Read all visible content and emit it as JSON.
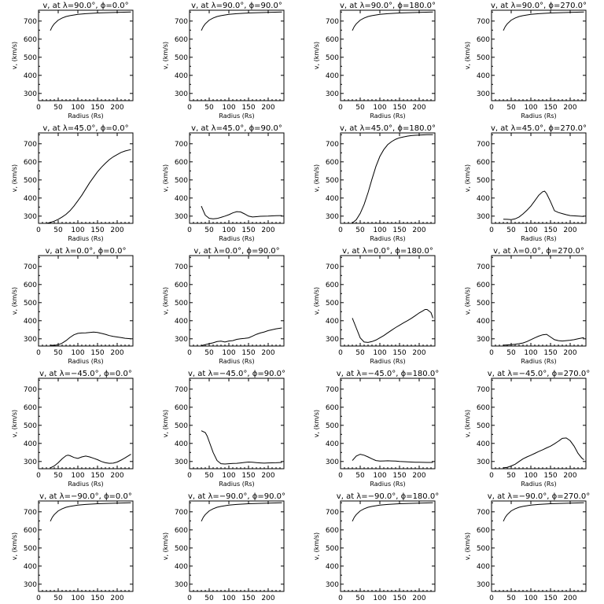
{
  "chart_data": [
    {
      "type": "line",
      "title": "v, at λ=90.0°, ϕ=0.0°",
      "xlabel": "Radius (Rs)",
      "ylabel": "v, (km/s)",
      "xlim": [
        0,
        240
      ],
      "ylim": [
        260,
        760
      ],
      "x": [
        30,
        35,
        40,
        50,
        60,
        70,
        80,
        100,
        120,
        150,
        200,
        235
      ],
      "values": [
        648,
        670,
        685,
        705,
        717,
        725,
        730,
        737,
        741,
        745,
        748,
        750
      ]
    },
    {
      "type": "line",
      "title": "v, at λ=90.0°, ϕ=90.0°",
      "xlabel": "Radius (Rs)",
      "ylabel": "v, (km/s)",
      "xlim": [
        0,
        240
      ],
      "ylim": [
        260,
        760
      ],
      "x": [
        30,
        35,
        40,
        50,
        60,
        70,
        80,
        100,
        120,
        150,
        200,
        235
      ],
      "values": [
        648,
        670,
        685,
        705,
        717,
        725,
        730,
        737,
        741,
        745,
        748,
        750
      ]
    },
    {
      "type": "line",
      "title": "v, at λ=90.0°, ϕ=180.0°",
      "xlabel": "Radius (Rs)",
      "ylabel": "v, (km/s)",
      "xlim": [
        0,
        240
      ],
      "ylim": [
        260,
        760
      ],
      "x": [
        30,
        35,
        40,
        50,
        60,
        70,
        80,
        100,
        120,
        150,
        200,
        235
      ],
      "values": [
        648,
        670,
        685,
        705,
        717,
        725,
        730,
        737,
        741,
        745,
        748,
        750
      ]
    },
    {
      "type": "line",
      "title": "v, at λ=90.0°, ϕ=270.0°",
      "xlabel": "Radius (Rs)",
      "ylabel": "v, (km/s)",
      "xlim": [
        0,
        240
      ],
      "ylim": [
        260,
        760
      ],
      "x": [
        30,
        35,
        40,
        50,
        60,
        70,
        80,
        100,
        120,
        150,
        200,
        235
      ],
      "values": [
        648,
        670,
        685,
        705,
        717,
        725,
        730,
        737,
        741,
        745,
        748,
        750
      ]
    },
    {
      "type": "line",
      "title": "v, at λ=45.0°, ϕ=0.0°",
      "xlabel": "Radius (Rs)",
      "ylabel": "v, (km/s)",
      "xlim": [
        0,
        240
      ],
      "ylim": [
        260,
        760
      ],
      "x": [
        20,
        30,
        40,
        50,
        60,
        70,
        80,
        90,
        100,
        110,
        120,
        130,
        140,
        150,
        160,
        170,
        180,
        190,
        200,
        210,
        220,
        235
      ],
      "values": [
        260,
        265,
        272,
        282,
        295,
        310,
        330,
        355,
        385,
        415,
        450,
        485,
        515,
        545,
        570,
        592,
        612,
        628,
        640,
        652,
        660,
        668
      ]
    },
    {
      "type": "line",
      "title": "v, at λ=45.0°, ϕ=90.0°",
      "xlabel": "Radius (Rs)",
      "ylabel": "v, (km/s)",
      "xlim": [
        0,
        240
      ],
      "ylim": [
        260,
        760
      ],
      "x": [
        30,
        35,
        40,
        50,
        60,
        70,
        80,
        90,
        100,
        110,
        120,
        130,
        140,
        150,
        160,
        170,
        180,
        200,
        220,
        235
      ],
      "values": [
        355,
        330,
        305,
        288,
        285,
        287,
        293,
        300,
        308,
        318,
        325,
        323,
        312,
        300,
        295,
        297,
        299,
        300,
        302,
        303
      ]
    },
    {
      "type": "line",
      "title": "v, at λ=45.0°, ϕ=180.0°",
      "xlabel": "Radius (Rs)",
      "ylabel": "v, (km/s)",
      "xlim": [
        0,
        240
      ],
      "ylim": [
        260,
        760
      ],
      "x": [
        30,
        40,
        50,
        60,
        70,
        80,
        90,
        100,
        110,
        120,
        130,
        140,
        150,
        160,
        170,
        180,
        190,
        200,
        210,
        220,
        235
      ],
      "values": [
        262,
        280,
        315,
        365,
        430,
        505,
        575,
        630,
        668,
        695,
        712,
        725,
        733,
        738,
        742,
        745,
        747,
        748,
        749,
        750,
        750
      ]
    },
    {
      "type": "line",
      "title": "v, at λ=45.0°, ϕ=270.0°",
      "xlabel": "Radius (Rs)",
      "ylabel": "v, (km/s)",
      "xlim": [
        0,
        240
      ],
      "ylim": [
        260,
        760
      ],
      "x": [
        30,
        40,
        50,
        60,
        70,
        80,
        90,
        100,
        110,
        120,
        130,
        135,
        140,
        150,
        160,
        170,
        180,
        190,
        200,
        220,
        235
      ],
      "values": [
        283,
        282,
        281,
        285,
        295,
        312,
        332,
        355,
        385,
        415,
        435,
        438,
        425,
        380,
        330,
        320,
        314,
        308,
        303,
        300,
        298
      ]
    },
    {
      "type": "line",
      "title": "v, at λ=0.0°, ϕ=0.0°",
      "xlabel": "Radius (Rs)",
      "ylabel": "v, (km/s)",
      "xlim": [
        0,
        240
      ],
      "ylim": [
        260,
        760
      ],
      "x": [
        30,
        40,
        50,
        60,
        70,
        80,
        90,
        100,
        110,
        120,
        130,
        140,
        150,
        160,
        170,
        180,
        190,
        200,
        210,
        220,
        235
      ],
      "values": [
        265,
        264,
        267,
        276,
        290,
        308,
        322,
        330,
        332,
        333,
        335,
        337,
        335,
        330,
        325,
        318,
        313,
        310,
        307,
        303,
        300
      ]
    },
    {
      "type": "line",
      "title": "v, at λ=0.0°, ϕ=90.0°",
      "xlabel": "Radius (Rs)",
      "ylabel": "v, (km/s)",
      "xlim": [
        0,
        240
      ],
      "ylim": [
        260,
        760
      ],
      "x": [
        30,
        40,
        50,
        60,
        70,
        80,
        90,
        100,
        110,
        120,
        130,
        140,
        150,
        160,
        170,
        180,
        190,
        200,
        210,
        220,
        235
      ],
      "values": [
        262,
        268,
        273,
        278,
        285,
        287,
        282,
        288,
        290,
        297,
        300,
        302,
        305,
        315,
        325,
        332,
        338,
        345,
        350,
        355,
        360
      ]
    },
    {
      "type": "line",
      "title": "v, at λ=0.0°, ϕ=180.0°",
      "xlabel": "Radius (Rs)",
      "ylabel": "v, (km/s)",
      "xlim": [
        0,
        240
      ],
      "ylim": [
        260,
        760
      ],
      "x": [
        30,
        40,
        50,
        60,
        70,
        80,
        90,
        100,
        110,
        120,
        130,
        140,
        150,
        160,
        170,
        180,
        190,
        200,
        210,
        215,
        220,
        230,
        235
      ],
      "values": [
        415,
        360,
        305,
        282,
        280,
        285,
        293,
        305,
        318,
        333,
        348,
        362,
        375,
        388,
        400,
        413,
        428,
        443,
        455,
        462,
        462,
        445,
        415
      ]
    },
    {
      "type": "line",
      "title": "v, at λ=0.0°, ϕ=270.0°",
      "xlabel": "Radius (Rs)",
      "ylabel": "v, (km/s)",
      "xlim": [
        0,
        240
      ],
      "ylim": [
        260,
        760
      ],
      "x": [
        30,
        40,
        50,
        60,
        70,
        80,
        90,
        100,
        110,
        120,
        130,
        140,
        150,
        160,
        170,
        180,
        190,
        200,
        210,
        220,
        235
      ],
      "values": [
        265,
        266,
        268,
        270,
        273,
        277,
        285,
        295,
        305,
        315,
        322,
        325,
        310,
        295,
        290,
        288,
        290,
        292,
        295,
        300,
        307
      ]
    },
    {
      "type": "line",
      "title": "v, at λ=−45.0°, ϕ=0.0°",
      "xlabel": "Radius (Rs)",
      "ylabel": "v, (km/s)",
      "xlim": [
        0,
        240
      ],
      "ylim": [
        260,
        760
      ],
      "x": [
        30,
        40,
        50,
        60,
        70,
        75,
        80,
        90,
        100,
        110,
        120,
        130,
        140,
        150,
        160,
        170,
        180,
        190,
        200,
        210,
        220,
        235
      ],
      "values": [
        265,
        275,
        293,
        315,
        332,
        335,
        332,
        322,
        317,
        325,
        330,
        325,
        318,
        310,
        300,
        293,
        290,
        291,
        297,
        308,
        320,
        340
      ]
    },
    {
      "type": "line",
      "title": "v, at λ=−45.0°, ϕ=90.0°",
      "xlabel": "Radius (Rs)",
      "ylabel": "v, (km/s)",
      "xlim": [
        0,
        240
      ],
      "ylim": [
        260,
        760
      ],
      "x": [
        30,
        40,
        45,
        50,
        60,
        70,
        80,
        90,
        100,
        110,
        120,
        130,
        140,
        150,
        160,
        170,
        180,
        190,
        200,
        220,
        235
      ],
      "values": [
        470,
        460,
        440,
        410,
        350,
        305,
        288,
        286,
        288,
        289,
        290,
        292,
        295,
        297,
        296,
        294,
        292,
        291,
        292,
        293,
        295
      ]
    },
    {
      "type": "line",
      "title": "v, at λ=−45.0°, ϕ=180.0°",
      "xlabel": "Radius (Rs)",
      "ylabel": "v, (km/s)",
      "xlim": [
        0,
        240
      ],
      "ylim": [
        260,
        760
      ],
      "x": [
        30,
        40,
        50,
        60,
        70,
        80,
        90,
        100,
        110,
        120,
        130,
        140,
        150,
        160,
        170,
        180,
        190,
        200,
        220,
        235
      ],
      "values": [
        305,
        330,
        340,
        335,
        325,
        315,
        305,
        302,
        303,
        304,
        303,
        302,
        300,
        299,
        298,
        297,
        296,
        296,
        295,
        295
      ]
    },
    {
      "type": "line",
      "title": "v, at λ=−45.0°, ϕ=270.0°",
      "xlabel": "Radius (Rs)",
      "ylabel": "v, (km/s)",
      "xlim": [
        0,
        240
      ],
      "ylim": [
        260,
        760
      ],
      "x": [
        30,
        40,
        50,
        60,
        70,
        80,
        90,
        100,
        110,
        120,
        130,
        140,
        150,
        160,
        170,
        175,
        180,
        190,
        200,
        210,
        220,
        230,
        235
      ],
      "values": [
        265,
        268,
        275,
        285,
        300,
        315,
        325,
        335,
        345,
        355,
        365,
        375,
        385,
        398,
        412,
        420,
        428,
        430,
        415,
        385,
        345,
        318,
        310
      ]
    },
    {
      "type": "line",
      "title": "v, at λ=−90.0°, ϕ=0.0°",
      "xlabel": "Radius (Rs)",
      "ylabel": "v, (km/s)",
      "xlim": [
        0,
        240
      ],
      "ylim": [
        260,
        760
      ],
      "x": [
        30,
        35,
        40,
        50,
        60,
        70,
        80,
        100,
        120,
        150,
        200,
        235
      ],
      "values": [
        648,
        670,
        685,
        705,
        717,
        725,
        730,
        737,
        741,
        745,
        748,
        750
      ]
    },
    {
      "type": "line",
      "title": "v, at λ=−90.0°, ϕ=90.0°",
      "xlabel": "Radius (Rs)",
      "ylabel": "v, (km/s)",
      "xlim": [
        0,
        240
      ],
      "ylim": [
        260,
        760
      ],
      "x": [
        30,
        35,
        40,
        50,
        60,
        70,
        80,
        100,
        120,
        150,
        200,
        235
      ],
      "values": [
        648,
        670,
        685,
        705,
        717,
        725,
        730,
        737,
        741,
        745,
        748,
        750
      ]
    },
    {
      "type": "line",
      "title": "v, at λ=−90.0°, ϕ=180.0°",
      "xlabel": "Radius (Rs)",
      "ylabel": "v, (km/s)",
      "xlim": [
        0,
        240
      ],
      "ylim": [
        260,
        760
      ],
      "x": [
        30,
        35,
        40,
        50,
        60,
        70,
        80,
        100,
        120,
        150,
        200,
        235
      ],
      "values": [
        648,
        670,
        685,
        705,
        717,
        725,
        730,
        737,
        741,
        745,
        748,
        750
      ]
    },
    {
      "type": "line",
      "title": "v, at λ=−90.0°, ϕ=270.0°",
      "xlabel": "Radius (Rs)",
      "ylabel": "v, (km/s)",
      "xlim": [
        0,
        240
      ],
      "ylim": [
        260,
        760
      ],
      "x": [
        30,
        35,
        40,
        50,
        60,
        70,
        80,
        100,
        120,
        150,
        200,
        235
      ],
      "values": [
        648,
        670,
        685,
        705,
        717,
        725,
        730,
        737,
        741,
        745,
        748,
        750
      ]
    }
  ],
  "axes": {
    "x_ticks": [
      0,
      50,
      100,
      150,
      200
    ],
    "y_ticks": [
      300,
      400,
      500,
      600,
      700
    ]
  }
}
